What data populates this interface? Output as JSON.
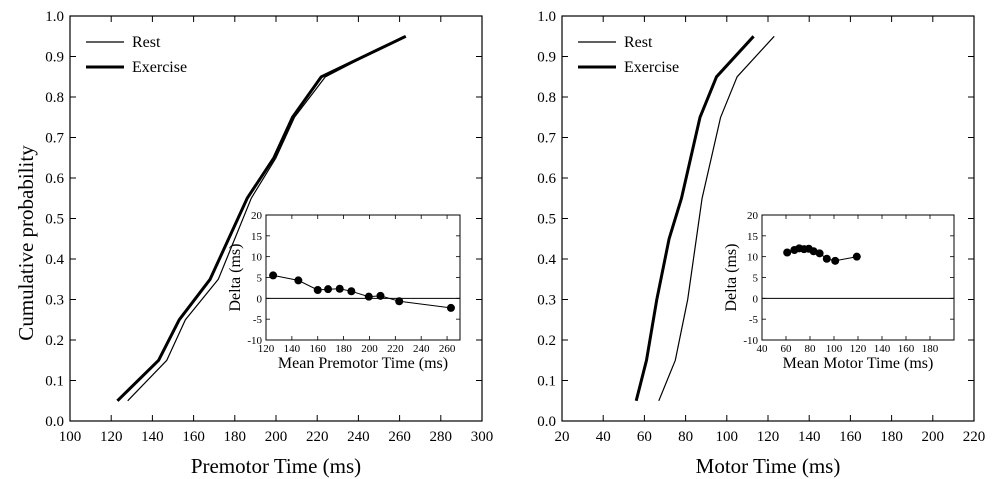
{
  "shared_ylabel": "Cumulative probability",
  "chart_data": [
    {
      "type": "line",
      "xlabel": "Premotor Time (ms)",
      "ylabel": "Cumulative probability",
      "xlim": [
        100,
        300
      ],
      "ylim": [
        0.0,
        1.0
      ],
      "xticks": [
        "100",
        "120",
        "140",
        "160",
        "180",
        "200",
        "220",
        "240",
        "260",
        "280",
        "300"
      ],
      "yticks": [
        "0.0",
        "0.1",
        "0.2",
        "0.3",
        "0.4",
        "0.5",
        "0.6",
        "0.7",
        "0.8",
        "0.9",
        "1.0"
      ],
      "legend": {
        "placement": "top-left",
        "entries": [
          "Rest",
          "Exercise"
        ]
      },
      "series": [
        {
          "name": "Rest",
          "stroke": "thin",
          "x": [
            128,
            147,
            156,
            172,
            188,
            200,
            209,
            224,
            262
          ],
          "y": [
            0.05,
            0.15,
            0.25,
            0.35,
            0.55,
            0.65,
            0.75,
            0.85,
            0.95
          ]
        },
        {
          "name": "Exercise",
          "stroke": "thick",
          "x": [
            123,
            143,
            153,
            168,
            186,
            199,
            208,
            222,
            263
          ],
          "y": [
            0.05,
            0.15,
            0.25,
            0.35,
            0.55,
            0.65,
            0.75,
            0.85,
            0.95
          ]
        }
      ],
      "inset": {
        "type": "scatter-line",
        "xlabel": "Mean Premotor Time (ms)",
        "ylabel": "Delta (ms)",
        "xlim": [
          120,
          270
        ],
        "ylim": [
          -10,
          20
        ],
        "xticks": [
          "120",
          "140",
          "160",
          "180",
          "200",
          "220",
          "240",
          "260"
        ],
        "yticks": [
          "-10",
          "-5",
          "0",
          "5",
          "10",
          "15",
          "20"
        ],
        "zero_line": true,
        "points": {
          "x": [
            125.5,
            145,
            160,
            168,
            177,
            186,
            199.5,
            208.5,
            223,
            263
          ],
          "y": [
            5.5,
            4.3,
            2.0,
            2.2,
            2.3,
            1.7,
            0.4,
            0.6,
            -0.7,
            -2.3
          ]
        }
      }
    },
    {
      "type": "line",
      "xlabel": "Motor Time (ms)",
      "ylabel": "",
      "xlim": [
        20,
        220
      ],
      "ylim": [
        0.0,
        1.0
      ],
      "xticks": [
        "20",
        "40",
        "60",
        "80",
        "100",
        "120",
        "140",
        "160",
        "180",
        "200",
        "220"
      ],
      "yticks": [
        "0.0",
        "0.1",
        "0.2",
        "0.3",
        "0.4",
        "0.5",
        "0.6",
        "0.7",
        "0.8",
        "0.9",
        "1.0"
      ],
      "legend": {
        "placement": "top-left",
        "entries": [
          "Rest",
          "Exercise"
        ]
      },
      "series": [
        {
          "name": "Rest",
          "stroke": "thin",
          "x": [
            67,
            75,
            81,
            88,
            97,
            105,
            123
          ],
          "y": [
            0.05,
            0.15,
            0.3,
            0.55,
            0.75,
            0.85,
            0.95
          ]
        },
        {
          "name": "Exercise",
          "stroke": "thick",
          "x": [
            56,
            61,
            66,
            72,
            78,
            87,
            95,
            113
          ],
          "y": [
            0.05,
            0.15,
            0.3,
            0.45,
            0.55,
            0.75,
            0.85,
            0.95
          ]
        }
      ],
      "inset": {
        "type": "scatter-line",
        "xlabel": "Mean Motor Time (ms)",
        "ylabel": "Delta (ms)",
        "xlim": [
          40,
          200
        ],
        "ylim": [
          -10,
          20
        ],
        "xticks": [
          "40",
          "60",
          "80",
          "100",
          "120",
          "140",
          "160",
          "180"
        ],
        "yticks": [
          "-10",
          "-5",
          "0",
          "5",
          "10",
          "15",
          "20"
        ],
        "zero_line": true,
        "points": {
          "x": [
            61,
            67,
            71,
            75,
            79,
            83,
            88,
            94,
            101,
            119
          ],
          "y": [
            11.0,
            11.6,
            12.0,
            11.8,
            11.9,
            11.3,
            10.8,
            9.5,
            9.0,
            10.0
          ]
        }
      }
    }
  ]
}
